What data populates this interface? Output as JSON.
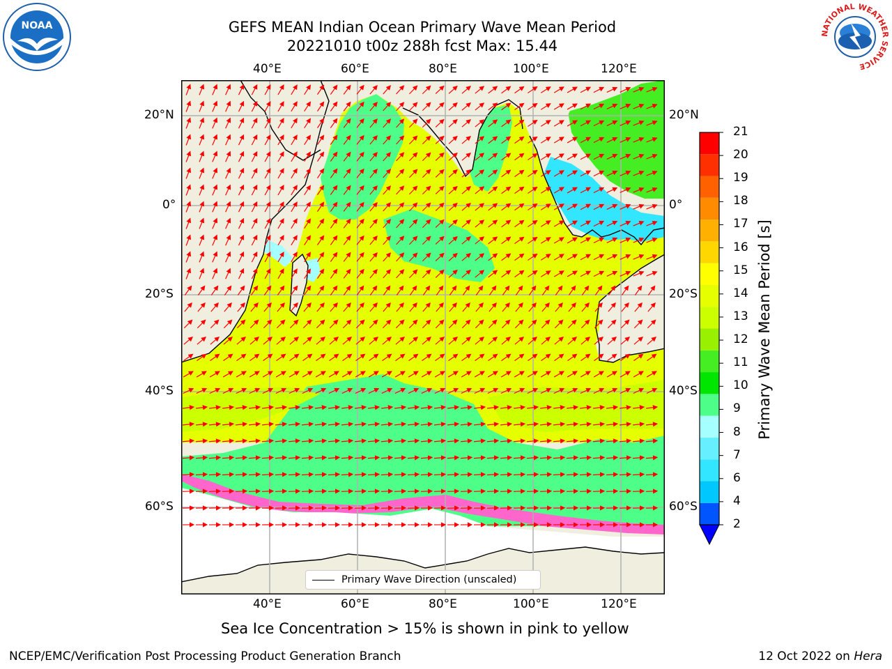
{
  "header": {
    "title_line1": "GEFS MEAN Indian Ocean Primary Wave Mean Period",
    "title_line2": "20221010 t00z 288h fcst   Max: 15.44"
  },
  "logos": {
    "left": "NOAA",
    "right_ring": "NATIONAL WEATHER SERVICE"
  },
  "axes": {
    "lon_labels": [
      "40°E",
      "60°E",
      "80°E",
      "100°E",
      "120°E"
    ],
    "lat_labels": [
      "20°N",
      "0°",
      "20°S",
      "40°S",
      "60°S"
    ]
  },
  "legend": {
    "label": "Primary Wave Direction (unscaled)"
  },
  "colorbar": {
    "label": "Primary Wave Mean Period [s]",
    "ticks": [
      "2",
      "4",
      "6",
      "7",
      "8",
      "9",
      "10",
      "11",
      "12",
      "13",
      "14",
      "15",
      "16",
      "17",
      "18",
      "19",
      "20",
      "21"
    ],
    "colors": [
      "#0055ff",
      "#00c8ff",
      "#33e6ff",
      "#66f0ff",
      "#a6ffff",
      "#4dff88",
      "#00e600",
      "#44ee22",
      "#99f000",
      "#ccff00",
      "#e6ff00",
      "#ffff00",
      "#ffd700",
      "#ffb000",
      "#ff8c00",
      "#ff6000",
      "#ff3000",
      "#ff0000"
    ],
    "extend_color": "#0000ff"
  },
  "notes": {
    "sea_ice": "Sea Ice Concentration > 15% is shown in pink to yellow"
  },
  "footer": {
    "left": "NCEP/EMC/Verification Post Processing Product Generation Branch",
    "date": "12 Oct 2022 on ",
    "machine": "Hera"
  },
  "colors": {
    "land": "#efeedf",
    "ocean_main": "#e6ff00",
    "green": "#4dff88",
    "arrow": "#ff0000",
    "ice_pink": "#ff66cc"
  }
}
